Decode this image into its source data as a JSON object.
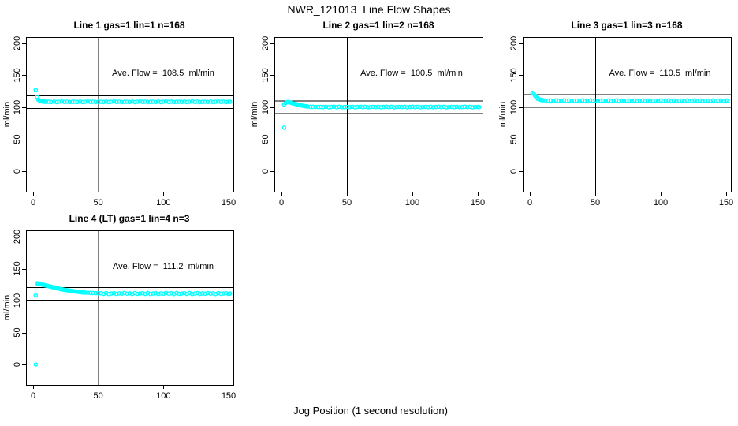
{
  "title": "NWR_121013  Line Flow Shapes",
  "xlabel": "Jog Position (1 second resolution)",
  "colors": {
    "marker": "#00FFFF",
    "axis": "#000000",
    "background": "#FFFFFF",
    "text": "#000000"
  },
  "chart_data": [
    {
      "type": "scatter",
      "title": "Line 1 gas=1 lin=1 n=168",
      "annotation": "Ave. Flow =  108.5  ml/min",
      "ave_flow": 108.5,
      "n": 168,
      "ylabel": "ml/min",
      "xticks": [
        0,
        50,
        100,
        150
      ],
      "yticks": [
        0,
        50,
        100,
        150,
        200
      ],
      "xlim": [
        0,
        150
      ],
      "ylim": [
        0,
        200
      ],
      "grid": false,
      "vline_x": 50,
      "hlines": [
        98.5,
        118.5
      ],
      "points": [
        [
          2,
          127
        ],
        [
          3,
          116
        ],
        [
          4,
          112
        ],
        [
          5,
          110.5
        ],
        [
          6,
          109.5
        ],
        [
          7,
          109
        ],
        [
          8,
          109
        ],
        [
          9,
          108.8
        ],
        [
          10,
          108.6
        ],
        [
          12,
          108.7
        ],
        [
          14,
          108.3
        ],
        [
          16,
          108.9
        ],
        [
          18,
          108.2
        ],
        [
          20,
          108.6
        ],
        [
          22,
          109
        ],
        [
          24,
          108.4
        ],
        [
          26,
          108.8
        ],
        [
          28,
          108.1
        ],
        [
          30,
          108.5
        ],
        [
          32,
          108.7
        ],
        [
          34,
          108.3
        ],
        [
          36,
          108.9
        ],
        [
          38,
          108.2
        ],
        [
          40,
          108.6
        ],
        [
          42,
          109
        ],
        [
          44,
          108.4
        ],
        [
          46,
          108.8
        ],
        [
          48,
          108.1
        ],
        [
          50,
          108.5
        ],
        [
          52,
          108.7
        ],
        [
          54,
          108.3
        ],
        [
          56,
          108.9
        ],
        [
          58,
          108.2
        ],
        [
          60,
          108.6
        ],
        [
          62,
          109
        ],
        [
          64,
          108.4
        ],
        [
          66,
          108.8
        ],
        [
          68,
          108.1
        ],
        [
          70,
          108.5
        ],
        [
          72,
          108.7
        ],
        [
          74,
          108.3
        ],
        [
          76,
          108.9
        ],
        [
          78,
          108.2
        ],
        [
          80,
          108.6
        ],
        [
          82,
          109
        ],
        [
          84,
          108.4
        ],
        [
          86,
          108.8
        ],
        [
          88,
          108.1
        ],
        [
          90,
          108.5
        ],
        [
          92,
          108.7
        ],
        [
          94,
          108.3
        ],
        [
          96,
          108.9
        ],
        [
          98,
          108.2
        ],
        [
          100,
          108.6
        ],
        [
          102,
          109
        ],
        [
          104,
          108.4
        ],
        [
          106,
          108.8
        ],
        [
          108,
          108.1
        ],
        [
          110,
          108.5
        ],
        [
          112,
          108.7
        ],
        [
          114,
          108.3
        ],
        [
          116,
          108.9
        ],
        [
          118,
          108.2
        ],
        [
          120,
          108.6
        ],
        [
          122,
          109
        ],
        [
          124,
          108.4
        ],
        [
          126,
          108.8
        ],
        [
          128,
          108.1
        ],
        [
          130,
          108.5
        ],
        [
          132,
          108.7
        ],
        [
          134,
          108.3
        ],
        [
          136,
          108.9
        ],
        [
          138,
          108.2
        ],
        [
          140,
          108.6
        ],
        [
          142,
          109
        ],
        [
          144,
          108.4
        ],
        [
          146,
          108.8
        ],
        [
          148,
          108.1
        ],
        [
          150,
          108.5
        ],
        [
          151,
          108.6
        ]
      ]
    },
    {
      "type": "scatter",
      "title": "Line 2 gas=1 lin=2 n=168",
      "annotation": "Ave. Flow =  100.5  ml/min",
      "ave_flow": 100.5,
      "n": 168,
      "ylabel": "ml/min",
      "xticks": [
        0,
        50,
        100,
        150
      ],
      "yticks": [
        0,
        50,
        100,
        150,
        200
      ],
      "xlim": [
        0,
        150
      ],
      "ylim": [
        0,
        200
      ],
      "grid": false,
      "vline_x": 50,
      "hlines": [
        90.5,
        110.5
      ],
      "points": [
        [
          2,
          68
        ],
        [
          2,
          104.5
        ],
        [
          3,
          106.5
        ],
        [
          4,
          108
        ],
        [
          5,
          108.2
        ],
        [
          6,
          107.8
        ],
        [
          7,
          107.2
        ],
        [
          8,
          106.5
        ],
        [
          9,
          106
        ],
        [
          10,
          105.5
        ],
        [
          11,
          105
        ],
        [
          12,
          104.5
        ],
        [
          13,
          104
        ],
        [
          14,
          103.5
        ],
        [
          15,
          103
        ],
        [
          16,
          102.5
        ],
        [
          17,
          102.2
        ],
        [
          18,
          101.8
        ],
        [
          19,
          101.5
        ],
        [
          20,
          101.2
        ],
        [
          22,
          100.9
        ],
        [
          24,
          100.7
        ],
        [
          26,
          100.6
        ],
        [
          28,
          100.5
        ],
        [
          30,
          100.6
        ],
        [
          32,
          100.2
        ],
        [
          34,
          100.8
        ],
        [
          36,
          100.1
        ],
        [
          38,
          100.5
        ],
        [
          40,
          100.9
        ],
        [
          42,
          100.3
        ],
        [
          44,
          100.7
        ],
        [
          46,
          100
        ],
        [
          48,
          100.4
        ],
        [
          50,
          100.6
        ],
        [
          52,
          100.2
        ],
        [
          54,
          100.8
        ],
        [
          56,
          100.1
        ],
        [
          58,
          100.5
        ],
        [
          60,
          100.9
        ],
        [
          62,
          100.3
        ],
        [
          64,
          100.7
        ],
        [
          66,
          100
        ],
        [
          68,
          100.4
        ],
        [
          70,
          100.6
        ],
        [
          72,
          100.2
        ],
        [
          74,
          100.8
        ],
        [
          76,
          100.1
        ],
        [
          78,
          100.5
        ],
        [
          80,
          100.9
        ],
        [
          82,
          100.3
        ],
        [
          84,
          100.7
        ],
        [
          86,
          100
        ],
        [
          88,
          100.4
        ],
        [
          90,
          100.6
        ],
        [
          92,
          100.2
        ],
        [
          94,
          100.8
        ],
        [
          96,
          100.1
        ],
        [
          98,
          100.5
        ],
        [
          100,
          100.9
        ],
        [
          102,
          100.3
        ],
        [
          104,
          100.7
        ],
        [
          106,
          100
        ],
        [
          108,
          100.4
        ],
        [
          110,
          100.6
        ],
        [
          112,
          100.2
        ],
        [
          114,
          100.8
        ],
        [
          116,
          100.1
        ],
        [
          118,
          100.5
        ],
        [
          120,
          100.9
        ],
        [
          122,
          100.3
        ],
        [
          124,
          100.7
        ],
        [
          126,
          100
        ],
        [
          128,
          100.4
        ],
        [
          130,
          100.6
        ],
        [
          132,
          100.2
        ],
        [
          134,
          100.8
        ],
        [
          136,
          100.1
        ],
        [
          138,
          100.5
        ],
        [
          140,
          100.9
        ],
        [
          142,
          100.3
        ],
        [
          144,
          100.7
        ],
        [
          146,
          100
        ],
        [
          148,
          100.4
        ],
        [
          150,
          100.6
        ],
        [
          151,
          100.3
        ]
      ]
    },
    {
      "type": "scatter",
      "title": "Line 3 gas=1 lin=3 n=168",
      "annotation": "Ave. Flow =  110.5  ml/min",
      "ave_flow": 110.5,
      "n": 168,
      "ylabel": "ml/min",
      "xticks": [
        0,
        50,
        100,
        150
      ],
      "yticks": [
        0,
        50,
        100,
        150,
        200
      ],
      "xlim": [
        0,
        150
      ],
      "ylim": [
        0,
        200
      ],
      "grid": false,
      "vline_x": 50,
      "hlines": [
        100.5,
        120.5
      ],
      "points": [
        [
          2,
          122.5
        ],
        [
          3,
          121
        ],
        [
          4,
          118
        ],
        [
          5,
          115.5
        ],
        [
          6,
          113.5
        ],
        [
          7,
          112.5
        ],
        [
          8,
          111.8
        ],
        [
          9,
          111.3
        ],
        [
          10,
          111
        ],
        [
          12,
          110.7
        ],
        [
          14,
          110.5
        ],
        [
          16,
          110.5
        ],
        [
          18,
          110.1
        ],
        [
          20,
          110.7
        ],
        [
          22,
          110
        ],
        [
          24,
          110.4
        ],
        [
          26,
          110.8
        ],
        [
          28,
          110.2
        ],
        [
          30,
          110.6
        ],
        [
          32,
          109.9
        ],
        [
          34,
          110.3
        ],
        [
          36,
          110.5
        ],
        [
          38,
          110.1
        ],
        [
          40,
          110.7
        ],
        [
          42,
          110
        ],
        [
          44,
          110.4
        ],
        [
          46,
          110.8
        ],
        [
          48,
          110.2
        ],
        [
          50,
          110.6
        ],
        [
          52,
          109.9
        ],
        [
          54,
          110.3
        ],
        [
          56,
          110.5
        ],
        [
          58,
          110.1
        ],
        [
          60,
          110.7
        ],
        [
          62,
          110
        ],
        [
          64,
          110.4
        ],
        [
          66,
          110.8
        ],
        [
          68,
          110.2
        ],
        [
          70,
          110.6
        ],
        [
          72,
          109.9
        ],
        [
          74,
          110.3
        ],
        [
          76,
          110.5
        ],
        [
          78,
          110.1
        ],
        [
          80,
          110.7
        ],
        [
          82,
          110
        ],
        [
          84,
          110.4
        ],
        [
          86,
          110.8
        ],
        [
          88,
          110.2
        ],
        [
          90,
          110.6
        ],
        [
          92,
          109.9
        ],
        [
          94,
          110.3
        ],
        [
          96,
          110.5
        ],
        [
          98,
          110.1
        ],
        [
          100,
          110.7
        ],
        [
          102,
          110
        ],
        [
          104,
          110.4
        ],
        [
          106,
          110.8
        ],
        [
          108,
          110.2
        ],
        [
          110,
          110.6
        ],
        [
          112,
          109.9
        ],
        [
          114,
          110.3
        ],
        [
          116,
          110.5
        ],
        [
          118,
          110.1
        ],
        [
          120,
          110.7
        ],
        [
          122,
          110
        ],
        [
          124,
          110.4
        ],
        [
          126,
          110.8
        ],
        [
          128,
          110.2
        ],
        [
          130,
          110.6
        ],
        [
          132,
          109.9
        ],
        [
          134,
          110.3
        ],
        [
          136,
          110.5
        ],
        [
          138,
          110.1
        ],
        [
          140,
          110.7
        ],
        [
          142,
          110
        ],
        [
          144,
          110.4
        ],
        [
          146,
          110.8
        ],
        [
          148,
          110.2
        ],
        [
          150,
          110.6
        ],
        [
          151,
          110.3
        ]
      ]
    },
    {
      "type": "scatter",
      "title": "Line 4 (LT) gas=1 lin=4 n=3",
      "annotation": "Ave. Flow =  111.2  ml/min",
      "ave_flow": 111.2,
      "n": 3,
      "ylabel": "ml/min",
      "xticks": [
        0,
        50,
        100,
        150
      ],
      "yticks": [
        0,
        50,
        100,
        150,
        200
      ],
      "xlim": [
        0,
        150
      ],
      "ylim": [
        0,
        200
      ],
      "grid": false,
      "vline_x": 50,
      "hlines": [
        101.2,
        121.2
      ],
      "points": [
        [
          2,
          0
        ],
        [
          2,
          108
        ],
        [
          3,
          127
        ],
        [
          4,
          126.5
        ],
        [
          5,
          126
        ],
        [
          6,
          125.5
        ],
        [
          7,
          125
        ],
        [
          8,
          124.5
        ],
        [
          9,
          124
        ],
        [
          10,
          123.5
        ],
        [
          11,
          123
        ],
        [
          12,
          122.5
        ],
        [
          13,
          122
        ],
        [
          14,
          121.5
        ],
        [
          15,
          121
        ],
        [
          16,
          120.5
        ],
        [
          17,
          120
        ],
        [
          18,
          119.5
        ],
        [
          19,
          119
        ],
        [
          20,
          118.5
        ],
        [
          21,
          118
        ],
        [
          22,
          117.5
        ],
        [
          23,
          117.2
        ],
        [
          24,
          116.8
        ],
        [
          25,
          116.5
        ],
        [
          26,
          116.2
        ],
        [
          27,
          115.8
        ],
        [
          28,
          115.5
        ],
        [
          29,
          115.2
        ],
        [
          30,
          114.9
        ],
        [
          31,
          114.6
        ],
        [
          32,
          114.3
        ],
        [
          33,
          114
        ],
        [
          34,
          113.8
        ],
        [
          35,
          113.5
        ],
        [
          36,
          113.3
        ],
        [
          37,
          113.1
        ],
        [
          38,
          112.9
        ],
        [
          39,
          112.7
        ],
        [
          40,
          112.5
        ],
        [
          42,
          112.2
        ],
        [
          44,
          112
        ],
        [
          46,
          111.8
        ],
        [
          48,
          111.6
        ],
        [
          50,
          111.4
        ],
        [
          52,
          111.5
        ],
        [
          54,
          110.5
        ],
        [
          56,
          111.8
        ],
        [
          58,
          110.2
        ],
        [
          60,
          111
        ],
        [
          62,
          111.6
        ],
        [
          64,
          110.4
        ],
        [
          66,
          111.2
        ],
        [
          68,
          110.7
        ],
        [
          70,
          111.9
        ],
        [
          72,
          110.9
        ],
        [
          74,
          111.3
        ],
        [
          76,
          110.3
        ],
        [
          78,
          111.7
        ],
        [
          80,
          110.6
        ],
        [
          82,
          111.1
        ],
        [
          84,
          111.5
        ],
        [
          86,
          110.5
        ],
        [
          88,
          111.8
        ],
        [
          90,
          110.2
        ],
        [
          92,
          111
        ],
        [
          94,
          111.6
        ],
        [
          96,
          110.4
        ],
        [
          98,
          111.2
        ],
        [
          100,
          110.7
        ],
        [
          102,
          111.9
        ],
        [
          104,
          110.9
        ],
        [
          106,
          111.3
        ],
        [
          108,
          110.3
        ],
        [
          110,
          111.7
        ],
        [
          112,
          110.6
        ],
        [
          114,
          111.1
        ],
        [
          116,
          111.5
        ],
        [
          118,
          110.5
        ],
        [
          120,
          111.8
        ],
        [
          122,
          110.2
        ],
        [
          124,
          111
        ],
        [
          126,
          111.6
        ],
        [
          128,
          110.4
        ],
        [
          130,
          111.2
        ],
        [
          132,
          110.7
        ],
        [
          134,
          111.9
        ],
        [
          136,
          110.9
        ],
        [
          138,
          111.3
        ],
        [
          140,
          110.3
        ],
        [
          142,
          111.7
        ],
        [
          144,
          110.6
        ],
        [
          146,
          111.1
        ],
        [
          148,
          111.5
        ],
        [
          150,
          110.5
        ],
        [
          151,
          111
        ]
      ]
    }
  ]
}
